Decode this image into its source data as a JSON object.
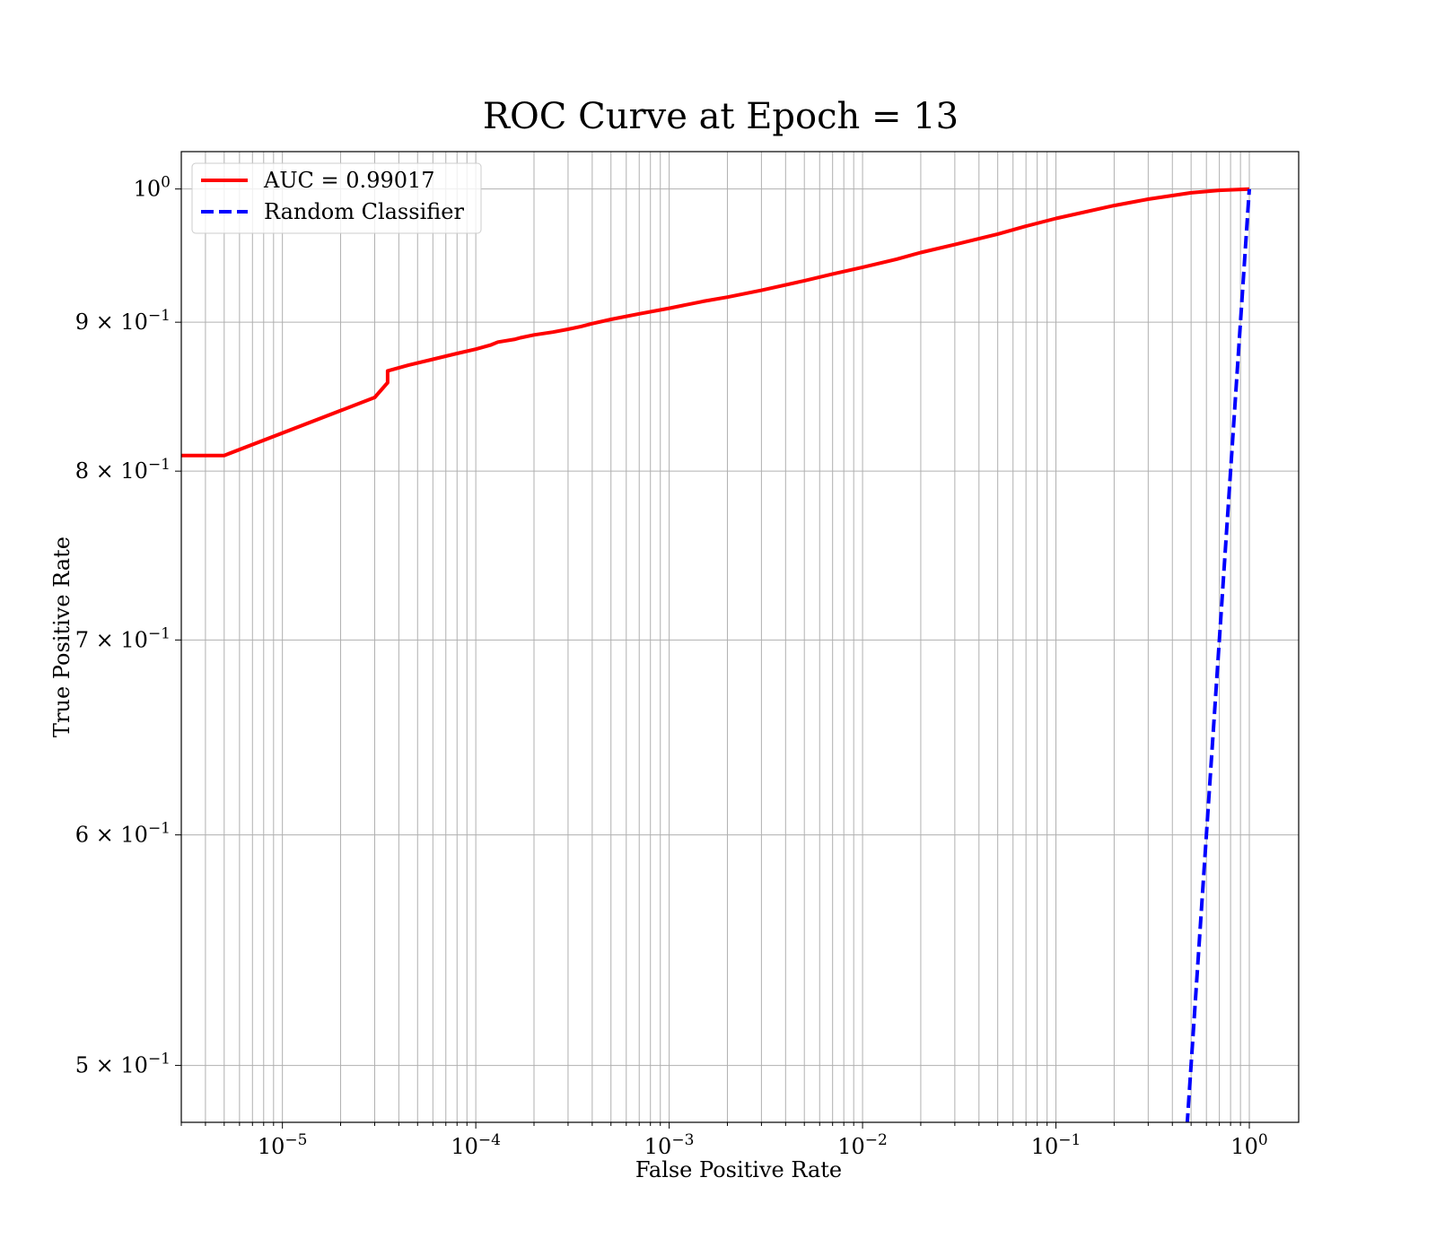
{
  "chart_data": {
    "type": "line",
    "title": "ROC Curve at Epoch = 13",
    "xlabel": "False Positive Rate",
    "ylabel": "True Positive Rate",
    "xscale": "log",
    "yscale": "log",
    "xlim": [
      3e-06,
      1.8
    ],
    "ylim": [
      0.478,
      1.03
    ],
    "grid": true,
    "grid_which": "both",
    "legend_position": "top-left",
    "x_ticks": [
      {
        "value": 1e-05,
        "base": "10",
        "exp": "−5"
      },
      {
        "value": 0.0001,
        "base": "10",
        "exp": "−4"
      },
      {
        "value": 0.001,
        "base": "10",
        "exp": "−3"
      },
      {
        "value": 0.01,
        "base": "10",
        "exp": "−2"
      },
      {
        "value": 0.1,
        "base": "10",
        "exp": "−1"
      },
      {
        "value": 1,
        "base": "10",
        "exp": "0"
      }
    ],
    "y_ticks": [
      {
        "value": 0.5,
        "mant": "5",
        "base": "10",
        "exp": "−1"
      },
      {
        "value": 0.6,
        "mant": "6",
        "base": "10",
        "exp": "−1"
      },
      {
        "value": 0.7,
        "mant": "7",
        "base": "10",
        "exp": "−1"
      },
      {
        "value": 0.8,
        "mant": "8",
        "base": "10",
        "exp": "−1"
      },
      {
        "value": 0.9,
        "mant": "9",
        "base": "10",
        "exp": "−1"
      },
      {
        "value": 1.0,
        "mant": "",
        "base": "10",
        "exp": "0"
      }
    ],
    "series": [
      {
        "name": "AUC = 0.99017",
        "color": "#ff0000",
        "style": "solid",
        "x": [
          3e-06,
          5e-06,
          3e-05,
          3.5e-05,
          3.5e-05,
          4.5e-05,
          6e-05,
          8e-05,
          0.0001,
          0.00012,
          0.00013,
          0.00016,
          0.00017,
          0.0002,
          0.00025,
          0.0003,
          0.00035,
          0.0004,
          0.0005,
          0.0007,
          0.001,
          0.0015,
          0.002,
          0.003,
          0.005,
          0.007,
          0.01,
          0.015,
          0.02,
          0.03,
          0.05,
          0.07,
          0.1,
          0.2,
          0.3,
          0.5,
          0.7,
          1.0
        ],
        "y": [
          0.81,
          0.81,
          0.848,
          0.858,
          0.866,
          0.87,
          0.874,
          0.878,
          0.881,
          0.884,
          0.886,
          0.888,
          0.889,
          0.891,
          0.893,
          0.895,
          0.897,
          0.899,
          0.902,
          0.906,
          0.91,
          0.915,
          0.918,
          0.923,
          0.93,
          0.935,
          0.94,
          0.946,
          0.951,
          0.957,
          0.965,
          0.971,
          0.977,
          0.987,
          0.992,
          0.997,
          0.999,
          1.0
        ]
      },
      {
        "name": "Random Classifier",
        "color": "#0000ff",
        "style": "dashed",
        "x": [
          0.47,
          1.0
        ],
        "y": [
          0.47,
          1.0
        ]
      }
    ]
  }
}
